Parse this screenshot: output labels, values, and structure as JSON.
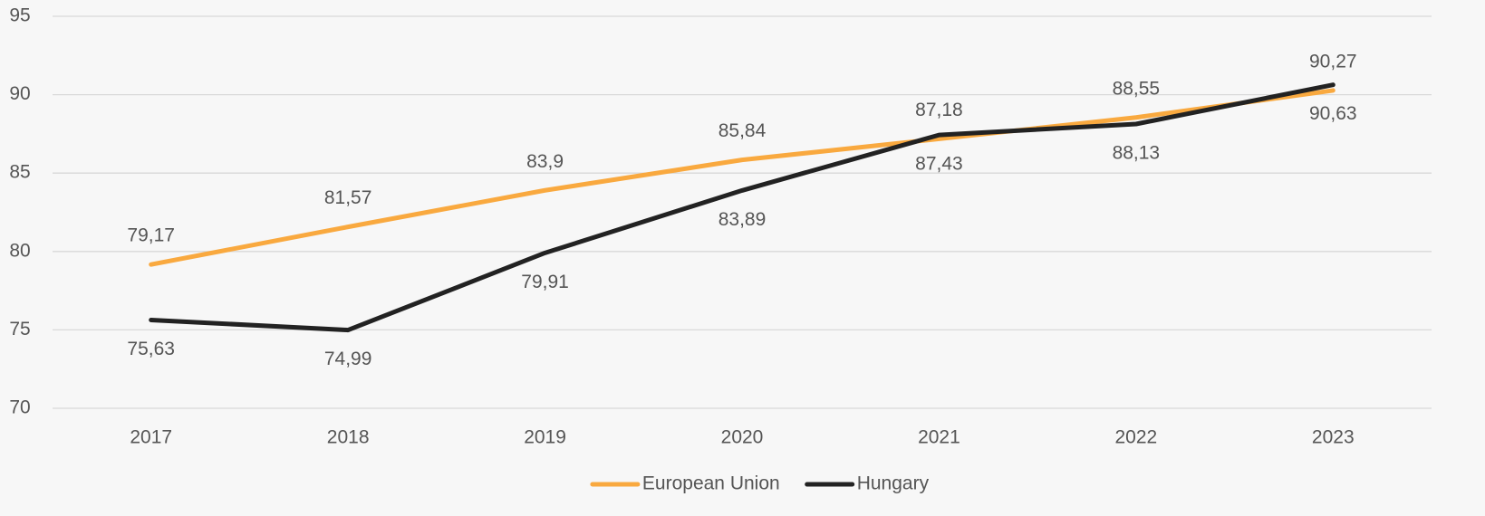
{
  "chart_data": {
    "type": "line",
    "categories": [
      "2017",
      "2018",
      "2019",
      "2020",
      "2021",
      "2022",
      "2023"
    ],
    "series": [
      {
        "name": "European Union",
        "color": "#f9a93f",
        "values": [
          79.17,
          81.57,
          83.9,
          85.84,
          87.18,
          88.55,
          90.27
        ],
        "value_labels": [
          "79,17",
          "81,57",
          "83,9",
          "85,84",
          "87,18",
          "88,55",
          "90,27"
        ]
      },
      {
        "name": "Hungary",
        "color": "#222222",
        "values": [
          75.63,
          74.99,
          79.91,
          83.89,
          87.43,
          88.13,
          90.63
        ],
        "value_labels": [
          "75,63",
          "74,99",
          "79,91",
          "83,89",
          "87,43",
          "88,13",
          "90,63"
        ]
      }
    ],
    "ylim": [
      70,
      95
    ],
    "yticks": [
      70,
      75,
      80,
      85,
      90,
      95
    ],
    "grid": true,
    "legend": "bottom"
  }
}
